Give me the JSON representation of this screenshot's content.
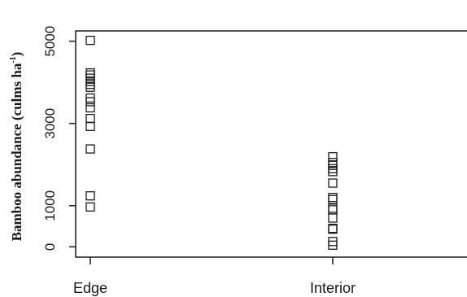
{
  "chart_data": {
    "type": "scatter",
    "title": "",
    "xlabel": "",
    "ylabel": {
      "prefix": "Bamboo abundance (culms ha",
      "sup": "-1",
      "suffix": ")"
    },
    "categories": [
      "Edge",
      "Interior"
    ],
    "ylim": [
      -250,
      5250
    ],
    "yticks": [
      "0",
      "1000",
      "3000",
      "5000"
    ],
    "marker": "open-square",
    "grid": false,
    "legend": "none",
    "series": [
      {
        "category": "Edge",
        "values": [
          5020,
          4230,
          4180,
          4100,
          4020,
          3950,
          3880,
          3620,
          3530,
          3380,
          3120,
          2930,
          2380,
          1240,
          970
        ]
      },
      {
        "category": "Interior",
        "values": [
          2190,
          2050,
          1980,
          1900,
          1830,
          1550,
          1200,
          1150,
          940,
          900,
          700,
          450,
          430,
          130,
          40
        ]
      }
    ]
  }
}
